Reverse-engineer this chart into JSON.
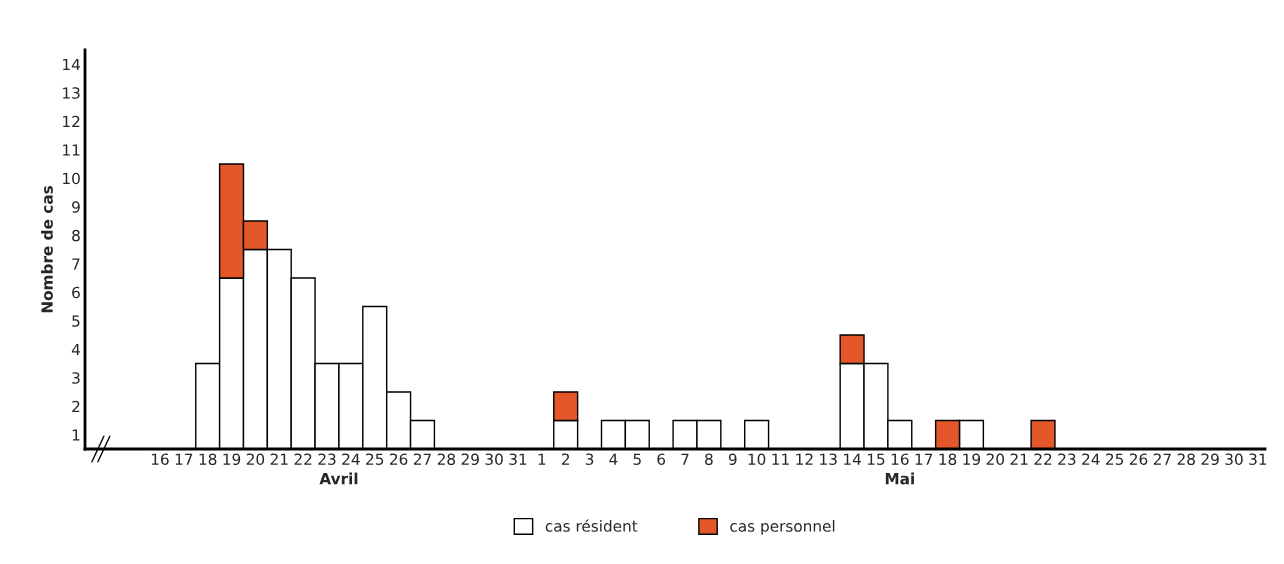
{
  "chart_data": {
    "type": "bar",
    "stacked": true,
    "ylabel": "Nombre de cas",
    "categories": [
      "16",
      "17",
      "18",
      "19",
      "20",
      "21",
      "22",
      "23",
      "24",
      "25",
      "26",
      "27",
      "28",
      "29",
      "30",
      "31",
      "1",
      "2",
      "3",
      "4",
      "5",
      "6",
      "7",
      "8",
      "9",
      "10",
      "11",
      "12",
      "13",
      "14",
      "15",
      "16",
      "17",
      "18",
      "19",
      "20",
      "21",
      "22",
      "23",
      "24",
      "25",
      "26",
      "27",
      "28",
      "29",
      "30",
      "31"
    ],
    "series": [
      {
        "name": "cas résident",
        "color": "#ffffff",
        "values": [
          0,
          0,
          3,
          6,
          7,
          7,
          6,
          3,
          3,
          5,
          2,
          1,
          0,
          0,
          0,
          0,
          0,
          1,
          0,
          1,
          1,
          0,
          1,
          1,
          0,
          1,
          0,
          0,
          0,
          3,
          3,
          1,
          0,
          0,
          1,
          0,
          0,
          0,
          0,
          0,
          0,
          0,
          0,
          0,
          0,
          0,
          0
        ]
      },
      {
        "name": "cas personnel",
        "color": "#e4572a",
        "values": [
          0,
          0,
          0,
          4,
          1,
          0,
          0,
          0,
          0,
          0,
          0,
          0,
          0,
          0,
          0,
          0,
          0,
          1,
          0,
          0,
          0,
          0,
          0,
          0,
          0,
          0,
          0,
          0,
          0,
          1,
          0,
          0,
          0,
          1,
          0,
          0,
          0,
          1,
          0,
          0,
          0,
          0,
          0,
          0,
          0,
          0,
          0
        ]
      }
    ],
    "ylim": [
      0,
      14
    ],
    "yticks": [
      {
        "value": 0.5,
        "label": "1"
      },
      {
        "value": 1.5,
        "label": "2"
      },
      {
        "value": 2.5,
        "label": "3"
      },
      {
        "value": 3.5,
        "label": "4"
      },
      {
        "value": 4.5,
        "label": "5"
      },
      {
        "value": 5.5,
        "label": "6"
      },
      {
        "value": 6.5,
        "label": "7"
      },
      {
        "value": 7.5,
        "label": "8"
      },
      {
        "value": 8.5,
        "label": "9"
      },
      {
        "value": 9.5,
        "label": "10"
      },
      {
        "value": 10.5,
        "label": "11"
      },
      {
        "value": 11.5,
        "label": "12"
      },
      {
        "value": 12.5,
        "label": "13"
      },
      {
        "value": 13.5,
        "label": "14"
      }
    ],
    "annotations": [
      "Avril",
      "Mai"
    ],
    "grid": false,
    "legend": "bottom"
  }
}
